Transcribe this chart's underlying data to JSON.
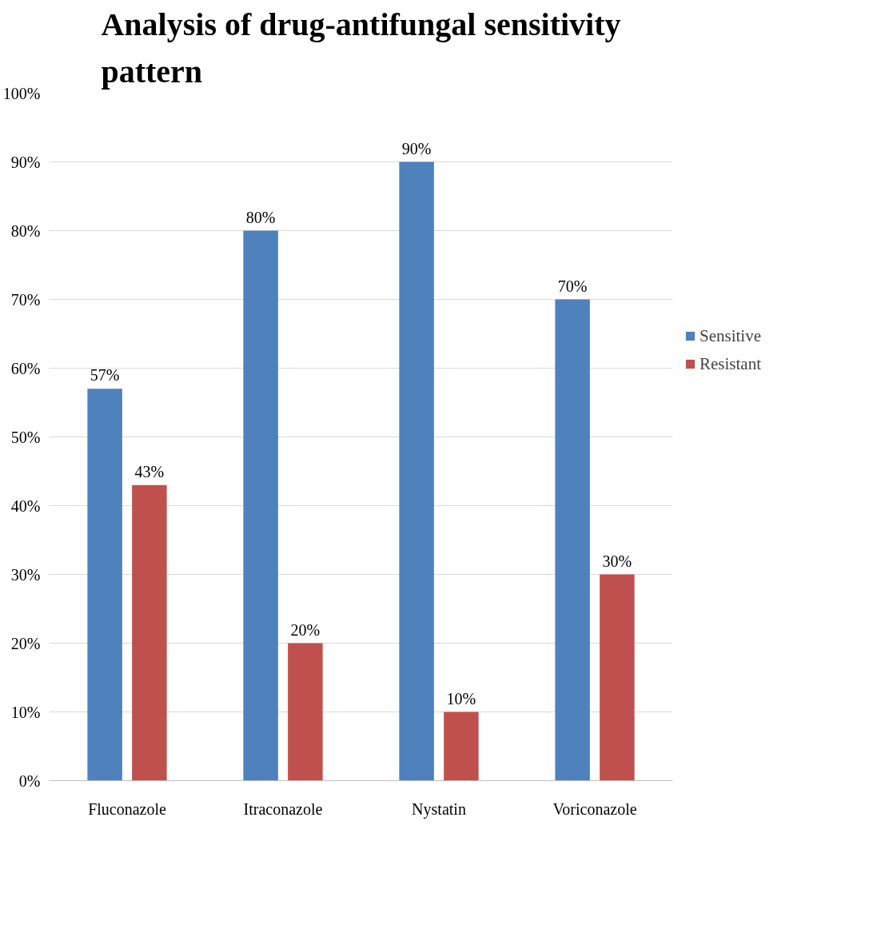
{
  "chart_data": {
    "type": "bar",
    "title": "Analysis of drug-antifungal sensitivity pattern",
    "categories": [
      "Fluconazole",
      "Itraconazole",
      "Nystatin",
      "Voriconazole"
    ],
    "series": [
      {
        "name": "Sensitive",
        "color": "#4f81bd",
        "values": [
          57,
          80,
          90,
          70
        ],
        "value_labels": [
          "57%",
          "80%",
          "90%",
          "70%"
        ]
      },
      {
        "name": "Resistant",
        "color": "#c0504d",
        "values": [
          43,
          20,
          10,
          30
        ],
        "value_labels": [
          "43%",
          "20%",
          "10%",
          "30%"
        ]
      }
    ],
    "ylim": [
      0,
      100
    ],
    "yticks": [
      {
        "value": 0,
        "label": "0%"
      },
      {
        "value": 10,
        "label": "10%"
      },
      {
        "value": 20,
        "label": "20%"
      },
      {
        "value": 30,
        "label": "30%"
      },
      {
        "value": 40,
        "label": "40%"
      },
      {
        "value": 50,
        "label": "50%"
      },
      {
        "value": 60,
        "label": "60%"
      },
      {
        "value": 70,
        "label": "70%"
      },
      {
        "value": 80,
        "label": "80%"
      },
      {
        "value": 90,
        "label": "90%"
      },
      {
        "value": 100,
        "label": "100%"
      }
    ],
    "grid": "y",
    "legend": "right"
  }
}
